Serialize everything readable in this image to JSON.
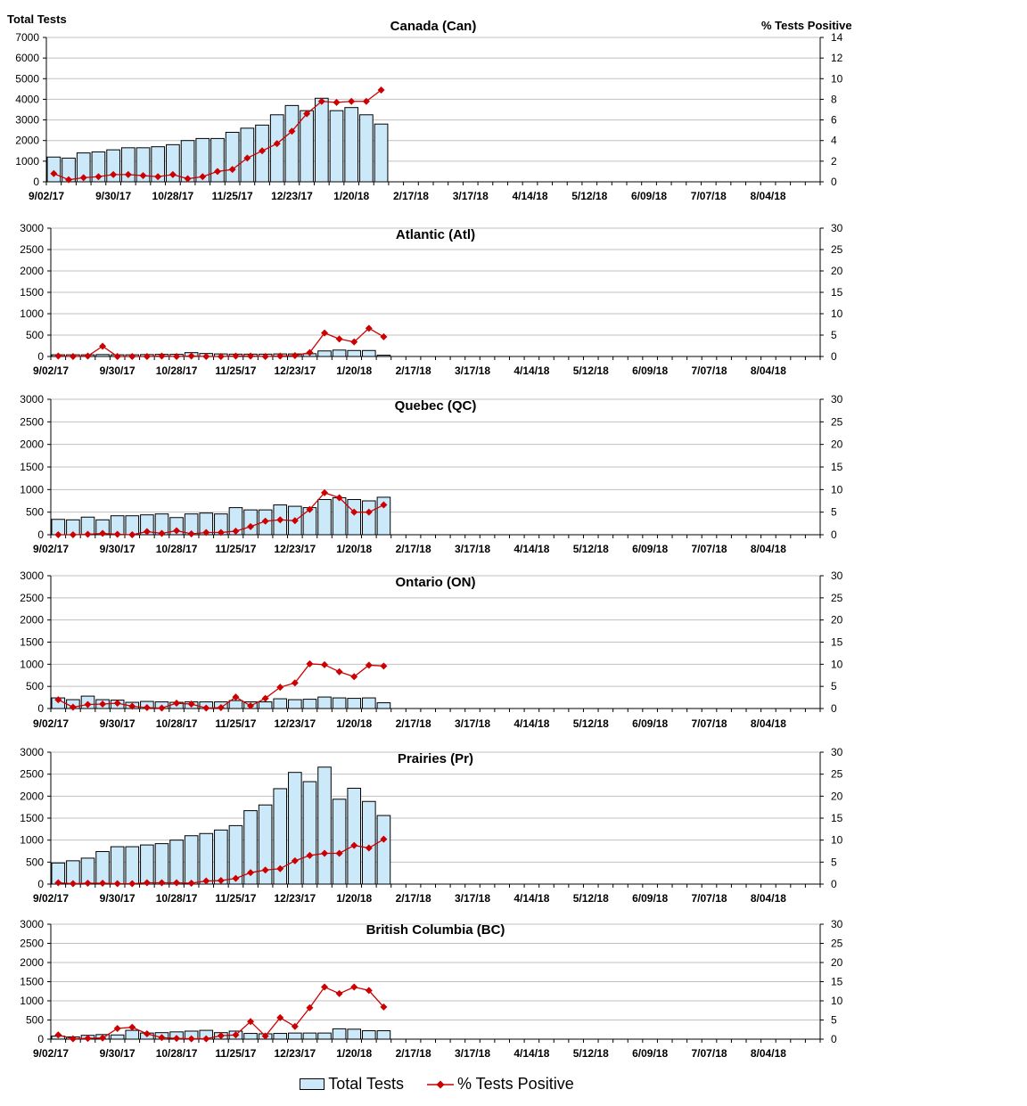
{
  "chart_data": {
    "type": "bar+line",
    "left_axis_title": "Total Tests",
    "right_axis_title": "%  Tests Positive",
    "x_tick_labels": [
      "9/02/17",
      "9/30/17",
      "10/28/17",
      "11/25/17",
      "12/23/17",
      "1/20/18",
      "2/17/18",
      "3/17/18",
      "4/14/18",
      "5/12/18",
      "6/09/18",
      "7/07/18",
      "8/04/18"
    ],
    "legend": {
      "bars": "Total Tests",
      "line": "% Tests Positive"
    },
    "colors": {
      "bar_fill": "#cce9fa",
      "bar_stroke": "#000000",
      "line": "#cc0000",
      "marker": "#cc0000",
      "grid": "#c0c0c0"
    },
    "panels": [
      {
        "title": "Canada (Can)",
        "left_ylim": [
          0,
          7000
        ],
        "left_ticks": [
          "0",
          "1000",
          "2000",
          "3000",
          "4000",
          "5000",
          "6000",
          "7000"
        ],
        "right_ylim": [
          0,
          14
        ],
        "right_ticks": [
          "0",
          "2",
          "4",
          "6",
          "8",
          "10",
          "12",
          "14"
        ],
        "series": [
          {
            "name": "Total Tests",
            "kind": "bar",
            "values": [
              1200,
              1150,
              1400,
              1450,
              1550,
              1650,
              1650,
              1700,
              1800,
              2000,
              2100,
              2100,
              2400,
              2600,
              2750,
              3250,
              3700,
              3450,
              4050,
              3450,
              3600,
              3250,
              2800
            ]
          },
          {
            "name": "% Tests Positive",
            "kind": "line",
            "values": [
              0.8,
              0.2,
              0.4,
              0.5,
              0.7,
              0.7,
              0.6,
              0.5,
              0.7,
              0.3,
              0.5,
              1.0,
              1.2,
              2.3,
              3.0,
              3.7,
              4.9,
              6.6,
              7.8,
              7.7,
              7.8,
              7.8,
              8.9
            ]
          }
        ]
      },
      {
        "title": "Atlantic (Atl)",
        "left_ylim": [
          0,
          3000
        ],
        "left_ticks": [
          "0",
          "500",
          "1000",
          "1500",
          "2000",
          "2500",
          "3000"
        ],
        "right_ylim": [
          0,
          30
        ],
        "right_ticks": [
          "0",
          "5",
          "10",
          "15",
          "20",
          "25",
          "30"
        ],
        "series": [
          {
            "name": "Total Tests",
            "kind": "bar",
            "values": [
              40,
              40,
              40,
              45,
              40,
              40,
              45,
              50,
              50,
              90,
              70,
              60,
              55,
              55,
              55,
              60,
              60,
              65,
              130,
              150,
              140,
              140,
              30
            ]
          },
          {
            "name": "% Tests Positive",
            "kind": "line",
            "values": [
              0.1,
              0.0,
              0.1,
              2.4,
              0.0,
              0.0,
              0.0,
              0.1,
              0.0,
              0.1,
              0.0,
              0.0,
              0.1,
              0.1,
              0.0,
              0.1,
              0.2,
              0.9,
              5.5,
              4.1,
              3.4,
              6.6,
              4.6
            ]
          }
        ]
      },
      {
        "title": "Quebec (QC)",
        "left_ylim": [
          0,
          3000
        ],
        "left_ticks": [
          "0",
          "500",
          "1000",
          "1500",
          "2000",
          "2500",
          "3000"
        ],
        "right_ylim": [
          0,
          30
        ],
        "right_ticks": [
          "0",
          "5",
          "10",
          "15",
          "20",
          "25",
          "30"
        ],
        "series": [
          {
            "name": "Total Tests",
            "kind": "bar",
            "values": [
              340,
              330,
              390,
              330,
              420,
              420,
              440,
              460,
              380,
              460,
              480,
              460,
              600,
              550,
              550,
              660,
              630,
              600,
              780,
              820,
              780,
              750,
              830
            ]
          },
          {
            "name": "% Tests Positive",
            "kind": "line",
            "values": [
              0.0,
              0.0,
              0.1,
              0.3,
              0.1,
              0.0,
              0.7,
              0.3,
              0.9,
              0.2,
              0.5,
              0.5,
              0.8,
              1.8,
              3.0,
              3.3,
              3.1,
              5.6,
              9.3,
              8.2,
              5.0,
              5.0,
              6.6
            ]
          }
        ]
      },
      {
        "title": "Ontario (ON)",
        "left_ylim": [
          0,
          3000
        ],
        "left_ticks": [
          "0",
          "500",
          "1000",
          "1500",
          "2000",
          "2500",
          "3000"
        ],
        "right_ylim": [
          0,
          30
        ],
        "right_ticks": [
          "0",
          "5",
          "10",
          "15",
          "20",
          "25",
          "30"
        ],
        "series": [
          {
            "name": "Total Tests",
            "kind": "bar",
            "values": [
              240,
              200,
              280,
              200,
              190,
              140,
              160,
              150,
              140,
              150,
              150,
              150,
              180,
              150,
              150,
              220,
              200,
              210,
              260,
              240,
              230,
              240,
              130
            ]
          },
          {
            "name": "% Tests Positive",
            "kind": "line",
            "values": [
              2.0,
              0.3,
              0.9,
              1.0,
              1.2,
              0.5,
              0.2,
              0.1,
              1.2,
              1.0,
              0.1,
              0.2,
              2.6,
              0.6,
              2.3,
              4.8,
              5.8,
              10.1,
              9.9,
              8.3,
              7.2,
              9.8,
              9.6
            ]
          }
        ]
      },
      {
        "title": "Prairies (Pr)",
        "left_ylim": [
          0,
          3000
        ],
        "left_ticks": [
          "0",
          "500",
          "1000",
          "1500",
          "2000",
          "2500",
          "3000"
        ],
        "right_ylim": [
          0,
          30
        ],
        "right_ticks": [
          "0",
          "5",
          "10",
          "15",
          "20",
          "25",
          "30"
        ],
        "series": [
          {
            "name": "Total Tests",
            "kind": "bar",
            "values": [
              480,
              530,
              590,
              740,
              850,
              850,
              890,
              920,
              1000,
              1100,
              1150,
              1230,
              1330,
              1670,
              1800,
              2170,
              2540,
              2330,
              2660,
              1930,
              2180,
              1880,
              1560
            ]
          },
          {
            "name": "% Tests Positive",
            "kind": "line",
            "values": [
              0.3,
              0.1,
              0.2,
              0.2,
              0.1,
              0.1,
              0.3,
              0.3,
              0.3,
              0.2,
              0.7,
              0.8,
              1.3,
              2.6,
              3.2,
              3.5,
              5.3,
              6.5,
              7.0,
              7.0,
              8.8,
              8.2,
              10.2
            ]
          }
        ]
      },
      {
        "title": "British Columbia (BC)",
        "left_ylim": [
          0,
          3000
        ],
        "left_ticks": [
          "0",
          "500",
          "1000",
          "1500",
          "2000",
          "2500",
          "3000"
        ],
        "right_ylim": [
          0,
          30
        ],
        "right_ticks": [
          "0",
          "5",
          "10",
          "15",
          "20",
          "25",
          "30"
        ],
        "series": [
          {
            "name": "Total Tests",
            "kind": "bar",
            "values": [
              80,
              60,
              100,
              120,
              110,
              230,
              160,
              170,
              190,
              210,
              230,
              170,
              210,
              150,
              140,
              150,
              160,
              160,
              160,
              270,
              260,
              220,
              220
            ]
          },
          {
            "name": "% Tests Positive",
            "kind": "line",
            "values": [
              1.1,
              0.1,
              0.2,
              0.3,
              2.8,
              3.1,
              1.4,
              0.4,
              0.2,
              0.1,
              0.1,
              0.9,
              1.1,
              4.6,
              0.8,
              5.6,
              3.3,
              8.2,
              13.6,
              11.9,
              13.6,
              12.7,
              8.4
            ]
          }
        ]
      }
    ]
  }
}
